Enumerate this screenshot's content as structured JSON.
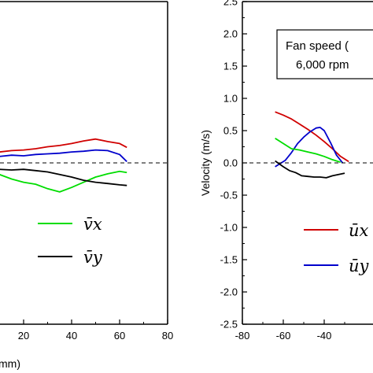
{
  "chart_data": [
    {
      "type": "line",
      "panel": "left",
      "xlim": [
        0,
        80
      ],
      "ylim": [
        -2.5,
        2.5
      ],
      "x_ticks": [
        "20",
        "40",
        "60",
        "80"
      ],
      "x_label_fragment": "mm)",
      "series": [
        {
          "name": "",
          "color": "#d00000",
          "x": [
            -20,
            0,
            5,
            10,
            15,
            20,
            25,
            30,
            35,
            40,
            45,
            50,
            55,
            60,
            63
          ],
          "y": [
            0.18,
            0.2,
            0.14,
            0.17,
            0.19,
            0.2,
            0.22,
            0.25,
            0.27,
            0.3,
            0.34,
            0.37,
            0.33,
            0.3,
            0.24
          ]
        },
        {
          "name": "",
          "color": "#0000cc",
          "x": [
            -20,
            0,
            5,
            10,
            15,
            20,
            25,
            30,
            35,
            40,
            45,
            50,
            55,
            60,
            63
          ],
          "y": [
            0.07,
            0.08,
            0.08,
            0.1,
            0.12,
            0.11,
            0.13,
            0.14,
            0.15,
            0.17,
            0.18,
            0.2,
            0.19,
            0.13,
            0.02
          ]
        },
        {
          "name": "v̄x",
          "color": "#00dd00",
          "x": [
            -20,
            0,
            5,
            10,
            15,
            20,
            25,
            30,
            35,
            40,
            45,
            50,
            55,
            60,
            63
          ],
          "y": [
            -0.2,
            -0.25,
            -0.15,
            -0.18,
            -0.25,
            -0.3,
            -0.33,
            -0.4,
            -0.45,
            -0.38,
            -0.3,
            -0.22,
            -0.17,
            -0.13,
            -0.15
          ]
        },
        {
          "name": "v̄y",
          "color": "#000000",
          "x": [
            -20,
            0,
            5,
            10,
            15,
            20,
            25,
            30,
            35,
            40,
            45,
            50,
            55,
            60,
            63
          ],
          "y": [
            -0.15,
            -0.1,
            -0.12,
            -0.1,
            -0.11,
            -0.1,
            -0.12,
            -0.14,
            -0.18,
            -0.22,
            -0.27,
            -0.3,
            -0.32,
            -0.34,
            -0.35
          ]
        }
      ],
      "reference_line": {
        "y": 0,
        "style": "dashed"
      }
    },
    {
      "type": "line",
      "panel": "right",
      "xlim": [
        -80,
        -20
      ],
      "ylim": [
        -2.5,
        2.5
      ],
      "x_ticks": [
        "-80",
        "-60",
        "-40"
      ],
      "y_ticks": [
        "2.5",
        "2.0",
        "1.5",
        "1.0",
        "0.5",
        "0.0",
        "-0.5",
        "-1.0",
        "-1.5",
        "-2.0",
        "-2.5"
      ],
      "ylabel": "Velocity (m/s)",
      "series": [
        {
          "name": "ūx",
          "color": "#d00000",
          "x": [
            -64,
            -60,
            -56,
            -52,
            -48,
            -44,
            -40,
            -36,
            -32,
            -28
          ],
          "y": [
            0.79,
            0.74,
            0.68,
            0.6,
            0.52,
            0.43,
            0.33,
            0.22,
            0.1,
            0.02
          ]
        },
        {
          "name": "ūy",
          "color": "#0000cc",
          "x": [
            -64,
            -62,
            -59,
            -56,
            -53,
            -50,
            -47,
            -44,
            -42,
            -40,
            -37,
            -34,
            -31
          ],
          "y": [
            -0.06,
            -0.02,
            0.04,
            0.16,
            0.3,
            0.4,
            0.48,
            0.54,
            0.55,
            0.5,
            0.32,
            0.12,
            0.0
          ]
        },
        {
          "name": "",
          "color": "#00dd00",
          "x": [
            -64,
            -60,
            -56,
            -52,
            -48,
            -44,
            -40,
            -36,
            -32
          ],
          "y": [
            0.38,
            0.3,
            0.22,
            0.2,
            0.17,
            0.14,
            0.1,
            0.05,
            0.01
          ]
        },
        {
          "name": "",
          "color": "#000000",
          "x": [
            -64,
            -60,
            -57,
            -54,
            -51,
            -48,
            -45,
            -42,
            -39,
            -36,
            -33,
            -30
          ],
          "y": [
            0.03,
            -0.06,
            -0.12,
            -0.15,
            -0.2,
            -0.21,
            -0.22,
            -0.22,
            -0.23,
            -0.2,
            -0.18,
            -0.16
          ]
        }
      ],
      "reference_line": {
        "y": 0,
        "style": "dashed"
      },
      "annotation_lines": [
        "Fan speed (",
        "6,000 rpm"
      ]
    }
  ]
}
